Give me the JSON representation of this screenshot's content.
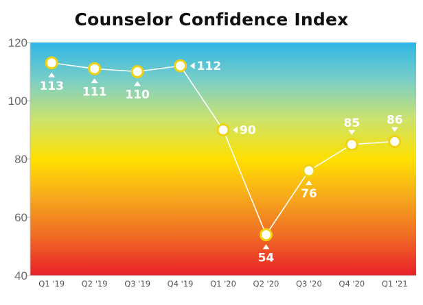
{
  "chart_data": {
    "type": "line",
    "title": "Counselor Confidence Index",
    "xlabel": "",
    "ylabel": "",
    "categories": [
      "Q1 '19",
      "Q2 '19",
      "Q3 '19",
      "Q4 '19",
      "Q1 '20",
      "Q2 '20",
      "Q3 '20",
      "Q4 '20",
      "Q1 '21"
    ],
    "series": [
      {
        "values": [
          113,
          111,
          110,
          112,
          90,
          54,
          76,
          85,
          86
        ]
      }
    ],
    "data_labels": [
      "113",
      "111",
      "110",
      "112",
      "90",
      "54",
      "76",
      "85",
      "86"
    ],
    "label_pointer": [
      "below",
      "below",
      "below",
      "right",
      "right",
      "below",
      "below",
      "above",
      "above"
    ],
    "ylim": [
      40,
      120
    ],
    "yticks": [
      "40",
      "60",
      "80",
      "100",
      "120"
    ],
    "grid": false,
    "background_gradient": [
      "#2fb6e6",
      "#7ccfc6",
      "#cde36a",
      "#ffe000",
      "#f7a81c",
      "#f06a24",
      "#e8202a"
    ],
    "colors": {
      "line": "#ffffff",
      "marker_fill": "#ffffff",
      "marker_stroke": "#f0d20f",
      "label": "#ffffff"
    }
  }
}
